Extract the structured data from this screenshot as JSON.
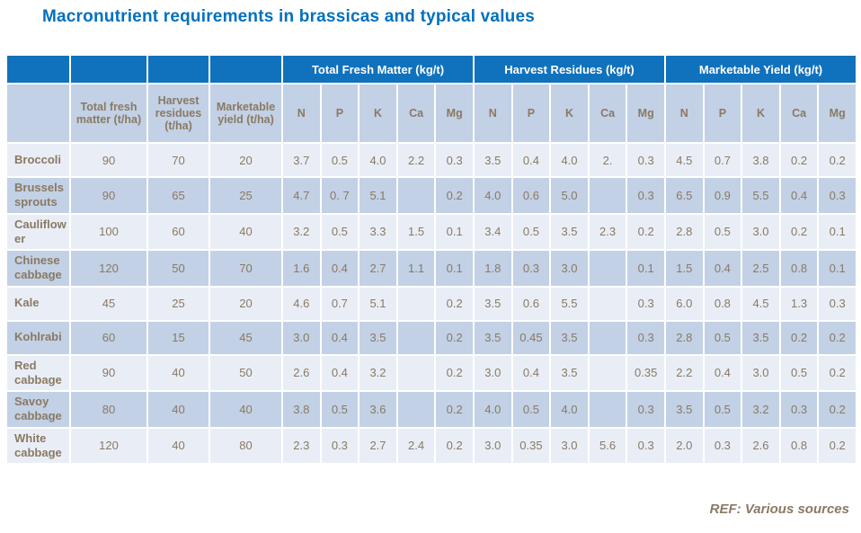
{
  "title": "Macronutrient requirements in brassicas and typical values",
  "footer_ref": "REF: Various sources",
  "colors": {
    "title_blue": "#0070C0",
    "header_bar_blue": "#1072BD",
    "row_light_blue": "#E9EEF6",
    "row_medium_blue": "#C2D1E5",
    "table_text_brown": "#8A7963",
    "header_text_white": "#FFFFFF"
  },
  "table": {
    "group_headers": [
      {
        "label": "Total Fresh Matter (kg/t)"
      },
      {
        "label": "Harvest Residues (kg/t)"
      },
      {
        "label": "Marketable Yield (kg/t)"
      }
    ],
    "stat_headers": [
      "Total fresh matter (t/ha)",
      "Harvest residues (t/ha)",
      "Marketable yield (t/ha)"
    ],
    "nutrients": [
      "N",
      "P",
      "K",
      "Ca",
      "Mg"
    ],
    "rows": [
      {
        "label": "Broccoli",
        "values": [
          "90",
          "70",
          "20",
          "3.7",
          "0.5",
          "4.0",
          "2.2",
          "0.3",
          "3.5",
          "0.4",
          "4.0",
          "2.",
          "0.3",
          "4.5",
          "0.7",
          "3.8",
          "0.2",
          "0.2"
        ]
      },
      {
        "label": "Brussels sprouts",
        "values": [
          "90",
          "65",
          "25",
          "4.7",
          "0. 7",
          "5.1",
          "",
          "0.2",
          "4.0",
          "0.6",
          "5.0",
          "",
          "0.3",
          "6.5",
          "0.9",
          "5.5",
          "0.4",
          "0.3"
        ]
      },
      {
        "label": "Cauliflower",
        "values": [
          "100",
          "60",
          "40",
          "3.2",
          "0.5",
          "3.3",
          "1.5",
          "0.1",
          "3.4",
          "0.5",
          "3.5",
          "2.3",
          "0.2",
          "2.8",
          "0.5",
          "3.0",
          "0.2",
          "0.1"
        ]
      },
      {
        "label": "Chinese cabbage",
        "values": [
          "120",
          "50",
          "70",
          "1.6",
          "0.4",
          "2.7",
          "1.1",
          "0.1",
          "1.8",
          "0.3",
          "3.0",
          "",
          "0.1",
          "1.5",
          "0.4",
          "2.5",
          "0.8",
          "0.1"
        ]
      },
      {
        "label": "Kale",
        "values": [
          "45",
          "25",
          "20",
          "4.6",
          "0.7",
          "5.1",
          "",
          "0.2",
          "3.5",
          "0.6",
          "5.5",
          "",
          "0.3",
          "6.0",
          "0.8",
          "4.5",
          "1.3",
          "0.3"
        ]
      },
      {
        "label": "Kohlrabi",
        "values": [
          "60",
          "15",
          "45",
          "3.0",
          "0.4",
          "3.5",
          "",
          "0.2",
          "3.5",
          "0.45",
          "3.5",
          "",
          "0.3",
          "2.8",
          "0.5",
          "3.5",
          "0.2",
          "0.2"
        ]
      },
      {
        "label": "Red cabbage",
        "values": [
          "90",
          "40",
          "50",
          "2.6",
          "0.4",
          "3.2",
          "",
          "0.2",
          "3.0",
          "0.4",
          "3.5",
          "",
          "0.35",
          "2.2",
          "0.4",
          "3.0",
          "0.5",
          "0.2"
        ]
      },
      {
        "label": "Savoy cabbage",
        "values": [
          "80",
          "40",
          "40",
          "3.8",
          "0.5",
          "3.6",
          "",
          "0.2",
          "4.0",
          "0.5",
          "4.0",
          "",
          "0.3",
          "3.5",
          "0.5",
          "3.2",
          "0.3",
          "0.2"
        ]
      },
      {
        "label": "White cabbage",
        "values": [
          "120",
          "40",
          "80",
          "2.3",
          "0.3",
          "2.7",
          "2.4",
          "0.2",
          "3.0",
          "0.35",
          "3.0",
          "5.6",
          "0.3",
          "2.0",
          "0.3",
          "2.6",
          "0.8",
          "0.2"
        ]
      }
    ]
  }
}
